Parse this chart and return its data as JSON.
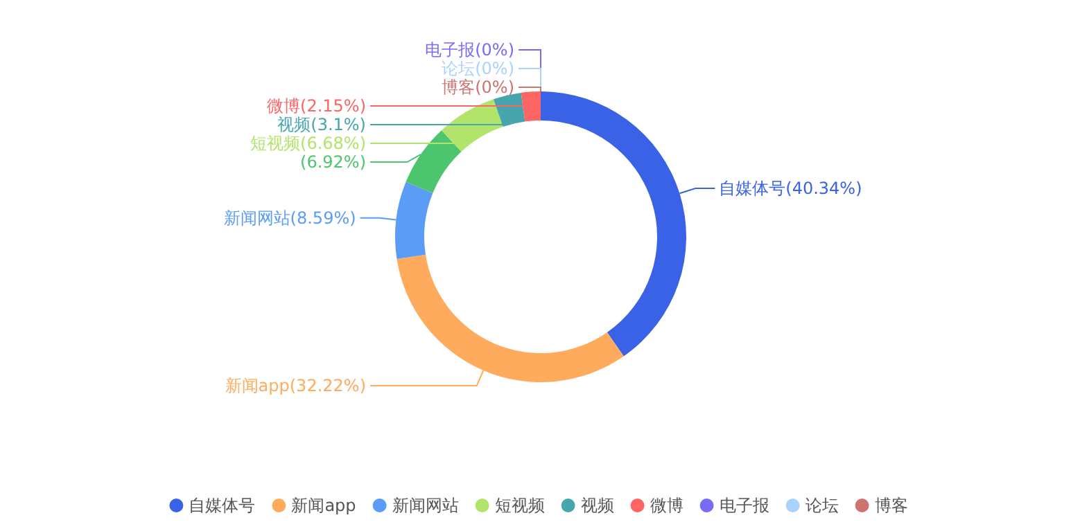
{
  "chart_data": {
    "type": "donut",
    "categories": [
      "自媒体号",
      "新闻app",
      "新闻网站",
      null,
      "短视频",
      "视频",
      "微博",
      "电子报",
      "论坛",
      "博客"
    ],
    "values": [
      40.34,
      32.22,
      8.59,
      6.92,
      6.68,
      3.1,
      2.15,
      0,
      0,
      0
    ],
    "colors": [
      "#3a62e6",
      "#ffab5e",
      "#5b9cf6",
      "#4cc56e",
      "#b2e36b",
      "#46a5ad",
      "#fd6565",
      "#7a6bf4",
      "#a9d3fd",
      "#cf7370"
    ],
    "value_labels": [
      "(40.34%)",
      "(32.22%)",
      "(8.59%)",
      "(6.92%)",
      "(6.68%)",
      "(3.1%)",
      "(2.15%)",
      "(0%)",
      "(0%)",
      "(0%)"
    ],
    "legend": "bottom"
  }
}
